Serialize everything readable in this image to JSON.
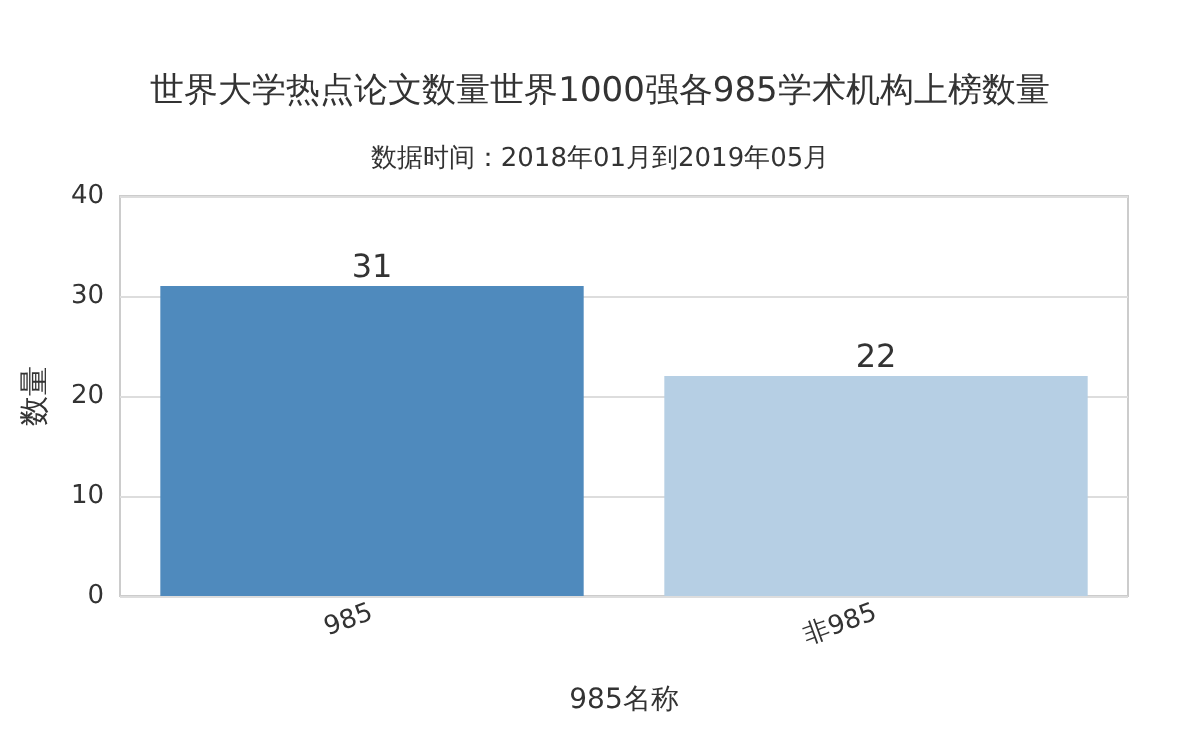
{
  "chart_data": {
    "type": "bar",
    "title": "世界大学热点论文数量世界1000强各985学术机构上榜数量",
    "subtitle": "数据时间：2018年01月到2019年05月",
    "xlabel": "985名称",
    "ylabel": "数量",
    "categories": [
      "985",
      "非985"
    ],
    "values": [
      31,
      22
    ],
    "colors": [
      "#4f8abd",
      "#b6cfe4"
    ],
    "ylim": [
      0,
      40
    ],
    "yticks": [
      0,
      10,
      20,
      30,
      40
    ],
    "grid": "y",
    "data_labels": true
  }
}
